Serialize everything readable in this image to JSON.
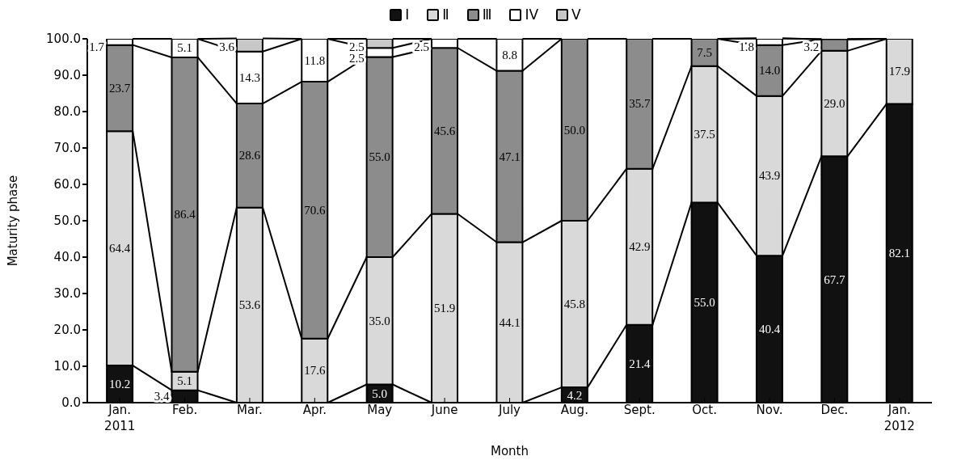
{
  "chart_data": {
    "type": "bar",
    "stacked": true,
    "xlabel": "Month",
    "ylabel": "Maturity phase",
    "categories": [
      "Jan.\n2011",
      "Feb.",
      "Mar.",
      "Apr.",
      "May",
      "June",
      "July",
      "Aug.",
      "Sept.",
      "Oct.",
      "Nov.",
      "Dec.",
      "Jan.\n2012"
    ],
    "series": [
      {
        "name": "Ⅰ",
        "color": "#111111",
        "values": [
          10.2,
          3.4,
          0,
          0,
          5.0,
          0,
          0,
          4.2,
          21.4,
          55.0,
          40.4,
          67.7,
          82.1
        ],
        "value_labels": [
          "10.2",
          "3.4",
          null,
          null,
          "5.0",
          null,
          null,
          "4.2",
          "21.4",
          "55.0",
          "40.4",
          "67.7",
          "82.1"
        ]
      },
      {
        "name": "Ⅱ",
        "color": "#d9d9d9",
        "values": [
          64.4,
          5.1,
          53.6,
          17.6,
          35.0,
          51.9,
          44.1,
          45.8,
          42.9,
          37.5,
          43.9,
          29.0,
          17.9
        ],
        "value_labels": [
          "64.4",
          "5.1",
          "53.6",
          "17.6",
          "35.0",
          "51.9",
          "44.1",
          "45.8",
          "42.9",
          "37.5",
          "43.9",
          "29.0",
          "17.9"
        ]
      },
      {
        "name": "Ⅲ",
        "color": "#8c8c8c",
        "values": [
          23.7,
          86.4,
          28.6,
          70.6,
          55.0,
          45.6,
          47.1,
          50.0,
          35.7,
          7.5,
          14.0,
          3.2,
          0
        ],
        "value_labels": [
          "23.7",
          "86.4",
          "28.6",
          "70.6",
          "55.0",
          "45.6",
          "47.1",
          "50.0",
          "35.7",
          "7.5",
          "14.0",
          "3.2",
          null
        ]
      },
      {
        "name": "IV",
        "color": "#ffffff",
        "values": [
          1.7,
          5.1,
          14.3,
          11.8,
          2.5,
          2.5,
          8.8,
          0,
          0,
          0,
          1.8,
          0,
          0
        ],
        "value_labels": [
          "1.7",
          "5.1",
          "14.3",
          "11.8",
          "2.5",
          "2.5",
          "8.8",
          null,
          null,
          null,
          "1.8",
          null,
          null
        ]
      },
      {
        "name": "V",
        "color": "#c8c8c8",
        "values": [
          0,
          0,
          3.6,
          0,
          2.5,
          0,
          0,
          0,
          0,
          0,
          0,
          0,
          0
        ],
        "value_labels": [
          null,
          null,
          "3.6",
          null,
          "2.5",
          null,
          null,
          null,
          null,
          null,
          null,
          null,
          null
        ]
      }
    ],
    "ylim": [
      0,
      100
    ],
    "yticks": [
      {
        "value": 0,
        "label": "0.0"
      },
      {
        "value": 10,
        "label": "10.0"
      },
      {
        "value": 20,
        "label": "20.0"
      },
      {
        "value": 30,
        "label": "30.0"
      },
      {
        "value": 40,
        "label": "40.0"
      },
      {
        "value": 50,
        "label": "50.0"
      },
      {
        "value": 60,
        "label": "60.0"
      },
      {
        "value": 70,
        "label": "70.0"
      },
      {
        "value": 80,
        "label": "80.0"
      },
      {
        "value": 90,
        "label": "90.0"
      },
      {
        "value": 100,
        "label": "100.0"
      }
    ],
    "grid": false,
    "legend": "top"
  }
}
